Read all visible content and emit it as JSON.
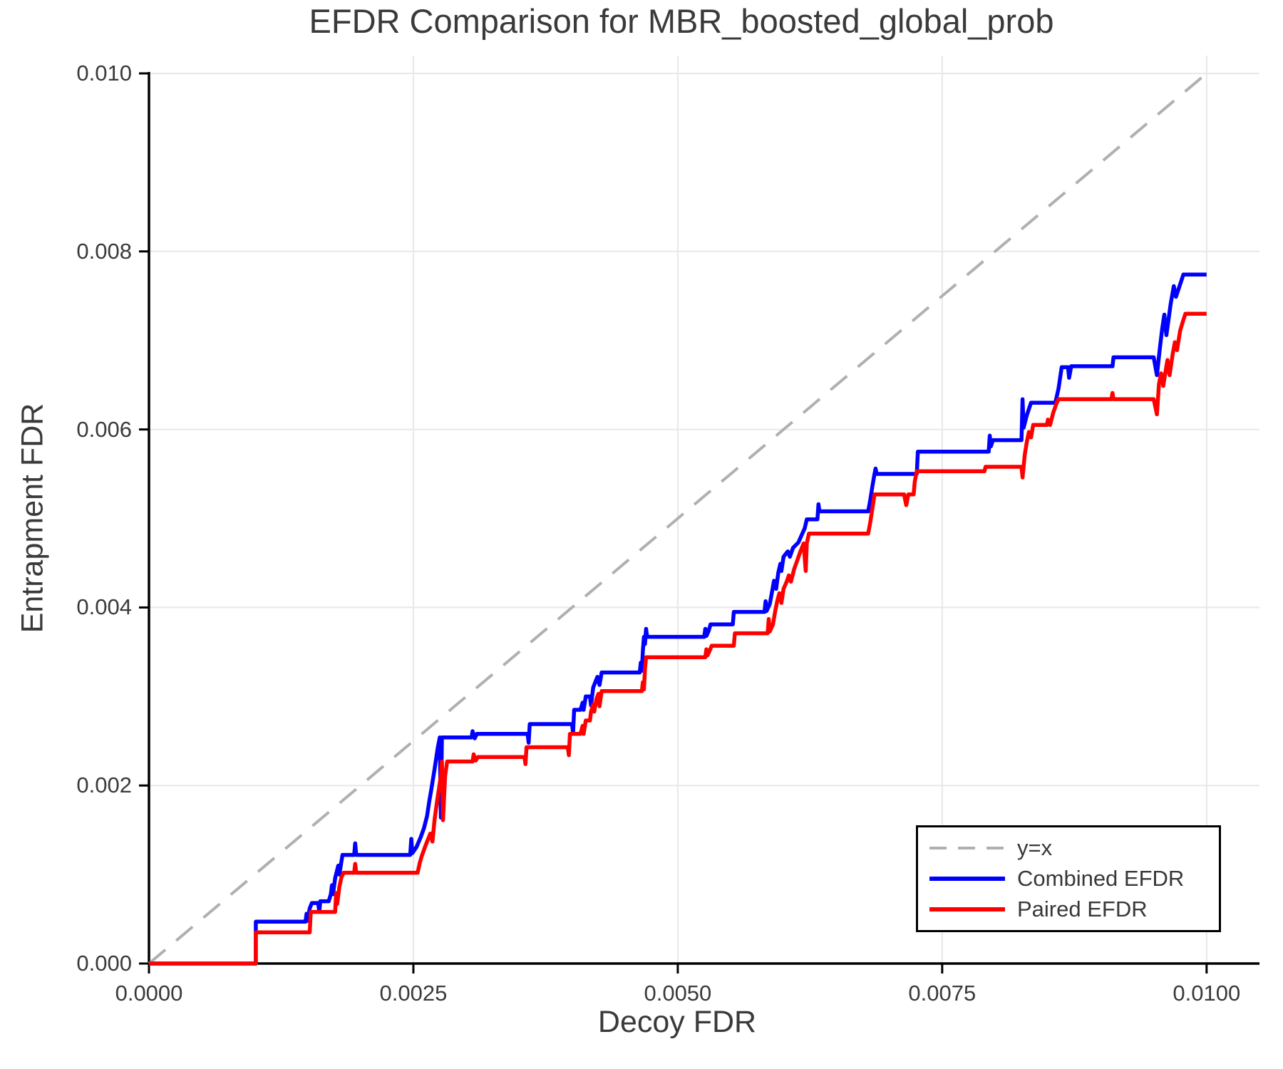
{
  "chart_data": {
    "type": "line",
    "title": "EFDR Comparison for MBR_boosted_global_prob",
    "xlabel": "Decoy FDR",
    "ylabel": "Entrapment FDR",
    "xlim": [
      0,
      0.0105
    ],
    "ylim": [
      0,
      0.0102
    ],
    "grid": true,
    "grid_color": "#e8e8e8",
    "axis_color": "#000000",
    "text_color": "#3a3a3a",
    "legend_position": "lower right",
    "x_ticks": [
      0,
      0.0025,
      0.005,
      0.0075,
      0.01
    ],
    "x_tick_labels": [
      "0.0000",
      "0.0025",
      "0.0050",
      "0.0075",
      "0.0100"
    ],
    "y_ticks": [
      0,
      0.002,
      0.004,
      0.006,
      0.008,
      0.01
    ],
    "y_tick_labels": [
      "0.000",
      "0.002",
      "0.004",
      "0.006",
      "0.008",
      "0.010"
    ],
    "series": [
      {
        "name": "y=x",
        "color": "#b0b0b0",
        "style": "dashed",
        "dash": "30 20",
        "width": 4,
        "points": [
          [
            0,
            0
          ],
          [
            0.01,
            0.01
          ]
        ]
      },
      {
        "name": "Combined EFDR",
        "color": "#0000ff",
        "style": "solid",
        "dash": null,
        "width": 5.5,
        "points": [
          [
            0,
            0
          ],
          [
            0.00101,
            0
          ],
          [
            0.00101,
            0.00047
          ],
          [
            0.00148,
            0.00047
          ],
          [
            0.00149,
            0.00056
          ],
          [
            0.0015,
            0.00048
          ],
          [
            0.00152,
            0.00062
          ],
          [
            0.00154,
            0.00068
          ],
          [
            0.0016,
            0.00068
          ],
          [
            0.00161,
            0.00058
          ],
          [
            0.00162,
            0.0007
          ],
          [
            0.0017,
            0.0007
          ],
          [
            0.00172,
            0.00078
          ],
          [
            0.00173,
            0.00088
          ],
          [
            0.00174,
            0.00078
          ],
          [
            0.00176,
            0.00096
          ],
          [
            0.00179,
            0.0011
          ],
          [
            0.0018,
            0.001
          ],
          [
            0.00183,
            0.00122
          ],
          [
            0.00194,
            0.00122
          ],
          [
            0.00195,
            0.00135
          ],
          [
            0.00196,
            0.00122
          ],
          [
            0.00247,
            0.00122
          ],
          [
            0.00248,
            0.0014
          ],
          [
            0.00249,
            0.00124
          ],
          [
            0.00253,
            0.00131
          ],
          [
            0.00257,
            0.00142
          ],
          [
            0.0026,
            0.00152
          ],
          [
            0.00263,
            0.00166
          ],
          [
            0.00265,
            0.00182
          ],
          [
            0.00267,
            0.00196
          ],
          [
            0.0027,
            0.00218
          ],
          [
            0.00273,
            0.00242
          ],
          [
            0.00275,
            0.00254
          ],
          [
            0.00276,
            0.00164
          ],
          [
            0.00277,
            0.00254
          ],
          [
            0.00305,
            0.00254
          ],
          [
            0.00306,
            0.00261
          ],
          [
            0.00308,
            0.00253
          ],
          [
            0.0031,
            0.00258
          ],
          [
            0.00358,
            0.00258
          ],
          [
            0.00359,
            0.00248
          ],
          [
            0.0036,
            0.00269
          ],
          [
            0.004,
            0.00269
          ],
          [
            0.00401,
            0.00259
          ],
          [
            0.00402,
            0.00285
          ],
          [
            0.00408,
            0.00285
          ],
          [
            0.0041,
            0.00293
          ],
          [
            0.00411,
            0.00285
          ],
          [
            0.00413,
            0.003
          ],
          [
            0.00417,
            0.003
          ],
          [
            0.00418,
            0.0029
          ],
          [
            0.0042,
            0.0031
          ],
          [
            0.00424,
            0.00322
          ],
          [
            0.00426,
            0.00313
          ],
          [
            0.00428,
            0.00327
          ],
          [
            0.00464,
            0.00327
          ],
          [
            0.00465,
            0.00338
          ],
          [
            0.00466,
            0.00329
          ],
          [
            0.00467,
            0.00351
          ],
          [
            0.00468,
            0.00367
          ],
          [
            0.00469,
            0.00359
          ],
          [
            0.0047,
            0.00376
          ],
          [
            0.00471,
            0.00367
          ],
          [
            0.00525,
            0.00367
          ],
          [
            0.00526,
            0.00376
          ],
          [
            0.00527,
            0.00368
          ],
          [
            0.00529,
            0.00373
          ],
          [
            0.00531,
            0.00381
          ],
          [
            0.00552,
            0.00381
          ],
          [
            0.00553,
            0.00395
          ],
          [
            0.00582,
            0.00395
          ],
          [
            0.00583,
            0.00407
          ],
          [
            0.00584,
            0.00396
          ],
          [
            0.00587,
            0.00404
          ],
          [
            0.00589,
            0.00417
          ],
          [
            0.00591,
            0.0043
          ],
          [
            0.00593,
            0.00421
          ],
          [
            0.00595,
            0.00439
          ],
          [
            0.00597,
            0.00449
          ],
          [
            0.00598,
            0.00441
          ],
          [
            0.006,
            0.00457
          ],
          [
            0.00604,
            0.00463
          ],
          [
            0.00606,
            0.00457
          ],
          [
            0.00609,
            0.00467
          ],
          [
            0.00614,
            0.00473
          ],
          [
            0.00617,
            0.00481
          ],
          [
            0.0062,
            0.00489
          ],
          [
            0.00622,
            0.00499
          ],
          [
            0.00632,
            0.00499
          ],
          [
            0.00633,
            0.00516
          ],
          [
            0.00634,
            0.00508
          ],
          [
            0.0068,
            0.00508
          ],
          [
            0.00682,
            0.00521
          ],
          [
            0.00684,
            0.00536
          ],
          [
            0.00686,
            0.0055
          ],
          [
            0.00687,
            0.00556
          ],
          [
            0.00688,
            0.0055
          ],
          [
            0.00726,
            0.0055
          ],
          [
            0.00727,
            0.00575
          ],
          [
            0.00794,
            0.00575
          ],
          [
            0.00795,
            0.00593
          ],
          [
            0.00796,
            0.00581
          ],
          [
            0.00798,
            0.00588
          ],
          [
            0.00825,
            0.00588
          ],
          [
            0.00826,
            0.00634
          ],
          [
            0.00827,
            0.00602
          ],
          [
            0.0083,
            0.00616
          ],
          [
            0.00834,
            0.0063
          ],
          [
            0.00857,
            0.0063
          ],
          [
            0.0086,
            0.00646
          ],
          [
            0.00863,
            0.0067
          ],
          [
            0.00869,
            0.0067
          ],
          [
            0.0087,
            0.00658
          ],
          [
            0.00872,
            0.00671
          ],
          [
            0.00911,
            0.00671
          ],
          [
            0.00912,
            0.00681
          ],
          [
            0.0095,
            0.00681
          ],
          [
            0.00953,
            0.00661
          ],
          [
            0.00956,
            0.00693
          ],
          [
            0.00958,
            0.00713
          ],
          [
            0.0096,
            0.00729
          ],
          [
            0.00962,
            0.00706
          ],
          [
            0.00966,
            0.00741
          ],
          [
            0.00969,
            0.00761
          ],
          [
            0.00971,
            0.00749
          ],
          [
            0.00975,
            0.00763
          ],
          [
            0.00978,
            0.00774
          ],
          [
            0.01,
            0.00774
          ]
        ]
      },
      {
        "name": "Paired EFDR",
        "color": "#ff0000",
        "style": "solid",
        "dash": null,
        "width": 5.5,
        "points": [
          [
            0,
            0
          ],
          [
            0.00101,
            0
          ],
          [
            0.00101,
            0.00035
          ],
          [
            0.00152,
            0.00035
          ],
          [
            0.00153,
            0.00058
          ],
          [
            0.00176,
            0.00058
          ],
          [
            0.00177,
            0.00079
          ],
          [
            0.00178,
            0.00067
          ],
          [
            0.0018,
            0.00086
          ],
          [
            0.00182,
            0.00097
          ],
          [
            0.00184,
            0.00102
          ],
          [
            0.00194,
            0.00102
          ],
          [
            0.00195,
            0.00112
          ],
          [
            0.00196,
            0.00102
          ],
          [
            0.00254,
            0.00102
          ],
          [
            0.00256,
            0.00113
          ],
          [
            0.00258,
            0.00121
          ],
          [
            0.00261,
            0.00131
          ],
          [
            0.00263,
            0.00137
          ],
          [
            0.00266,
            0.00146
          ],
          [
            0.00268,
            0.00137
          ],
          [
            0.0027,
            0.00161
          ],
          [
            0.00272,
            0.00179
          ],
          [
            0.00274,
            0.00195
          ],
          [
            0.00276,
            0.00211
          ],
          [
            0.00277,
            0.00227
          ],
          [
            0.00278,
            0.00161
          ],
          [
            0.0028,
            0.00211
          ],
          [
            0.00282,
            0.00227
          ],
          [
            0.00306,
            0.00227
          ],
          [
            0.00307,
            0.00235
          ],
          [
            0.00309,
            0.00228
          ],
          [
            0.00311,
            0.00232
          ],
          [
            0.00355,
            0.00232
          ],
          [
            0.00356,
            0.00224
          ],
          [
            0.00357,
            0.00243
          ],
          [
            0.00396,
            0.00243
          ],
          [
            0.00397,
            0.00234
          ],
          [
            0.00398,
            0.00258
          ],
          [
            0.00408,
            0.00258
          ],
          [
            0.0041,
            0.00267
          ],
          [
            0.00411,
            0.00258
          ],
          [
            0.00413,
            0.00273
          ],
          [
            0.00417,
            0.00273
          ],
          [
            0.00418,
            0.00283
          ],
          [
            0.0042,
            0.00291
          ],
          [
            0.00421,
            0.00283
          ],
          [
            0.00423,
            0.00297
          ],
          [
            0.00425,
            0.00303
          ],
          [
            0.00426,
            0.00289
          ],
          [
            0.00428,
            0.00306
          ],
          [
            0.00466,
            0.00306
          ],
          [
            0.00467,
            0.00316
          ],
          [
            0.00468,
            0.00308
          ],
          [
            0.00469,
            0.00331
          ],
          [
            0.0047,
            0.00344
          ],
          [
            0.00526,
            0.00344
          ],
          [
            0.00527,
            0.00353
          ],
          [
            0.00528,
            0.00346
          ],
          [
            0.0053,
            0.00351
          ],
          [
            0.00532,
            0.00357
          ],
          [
            0.00553,
            0.00357
          ],
          [
            0.00554,
            0.00371
          ],
          [
            0.00585,
            0.00371
          ],
          [
            0.00586,
            0.00387
          ],
          [
            0.00587,
            0.00373
          ],
          [
            0.0059,
            0.00381
          ],
          [
            0.00592,
            0.00395
          ],
          [
            0.00594,
            0.00407
          ],
          [
            0.00596,
            0.00416
          ],
          [
            0.00598,
            0.00405
          ],
          [
            0.006,
            0.00421
          ],
          [
            0.00603,
            0.00429
          ],
          [
            0.00605,
            0.00436
          ],
          [
            0.00607,
            0.00429
          ],
          [
            0.0061,
            0.00443
          ],
          [
            0.00613,
            0.00453
          ],
          [
            0.00616,
            0.00463
          ],
          [
            0.00619,
            0.00472
          ],
          [
            0.00621,
            0.00441
          ],
          [
            0.00622,
            0.00472
          ],
          [
            0.00624,
            0.00483
          ],
          [
            0.0068,
            0.00483
          ],
          [
            0.00682,
            0.00496
          ],
          [
            0.00684,
            0.00511
          ],
          [
            0.00686,
            0.00527
          ],
          [
            0.00714,
            0.00527
          ],
          [
            0.00716,
            0.00515
          ],
          [
            0.00718,
            0.00527
          ],
          [
            0.00723,
            0.00527
          ],
          [
            0.00724,
            0.00541
          ],
          [
            0.00726,
            0.00553
          ],
          [
            0.0079,
            0.00553
          ],
          [
            0.00791,
            0.00558
          ],
          [
            0.00825,
            0.00558
          ],
          [
            0.00826,
            0.00546
          ],
          [
            0.00828,
            0.00571
          ],
          [
            0.0083,
            0.00586
          ],
          [
            0.00832,
            0.00597
          ],
          [
            0.00834,
            0.00591
          ],
          [
            0.00836,
            0.00605
          ],
          [
            0.00849,
            0.00605
          ],
          [
            0.0085,
            0.00611
          ],
          [
            0.00852,
            0.00605
          ],
          [
            0.00855,
            0.00619
          ],
          [
            0.00858,
            0.00629
          ],
          [
            0.0086,
            0.00634
          ],
          [
            0.0091,
            0.00634
          ],
          [
            0.00911,
            0.00641
          ],
          [
            0.00912,
            0.00634
          ],
          [
            0.0095,
            0.00634
          ],
          [
            0.00953,
            0.00617
          ],
          [
            0.00955,
            0.00651
          ],
          [
            0.00957,
            0.00663
          ],
          [
            0.00959,
            0.00649
          ],
          [
            0.00962,
            0.00671
          ],
          [
            0.00963,
            0.00678
          ],
          [
            0.00965,
            0.00661
          ],
          [
            0.00968,
            0.00685
          ],
          [
            0.0097,
            0.00698
          ],
          [
            0.00972,
            0.00689
          ],
          [
            0.00975,
            0.00711
          ],
          [
            0.00978,
            0.00723
          ],
          [
            0.0098,
            0.0073
          ],
          [
            0.01,
            0.0073
          ]
        ]
      }
    ]
  }
}
